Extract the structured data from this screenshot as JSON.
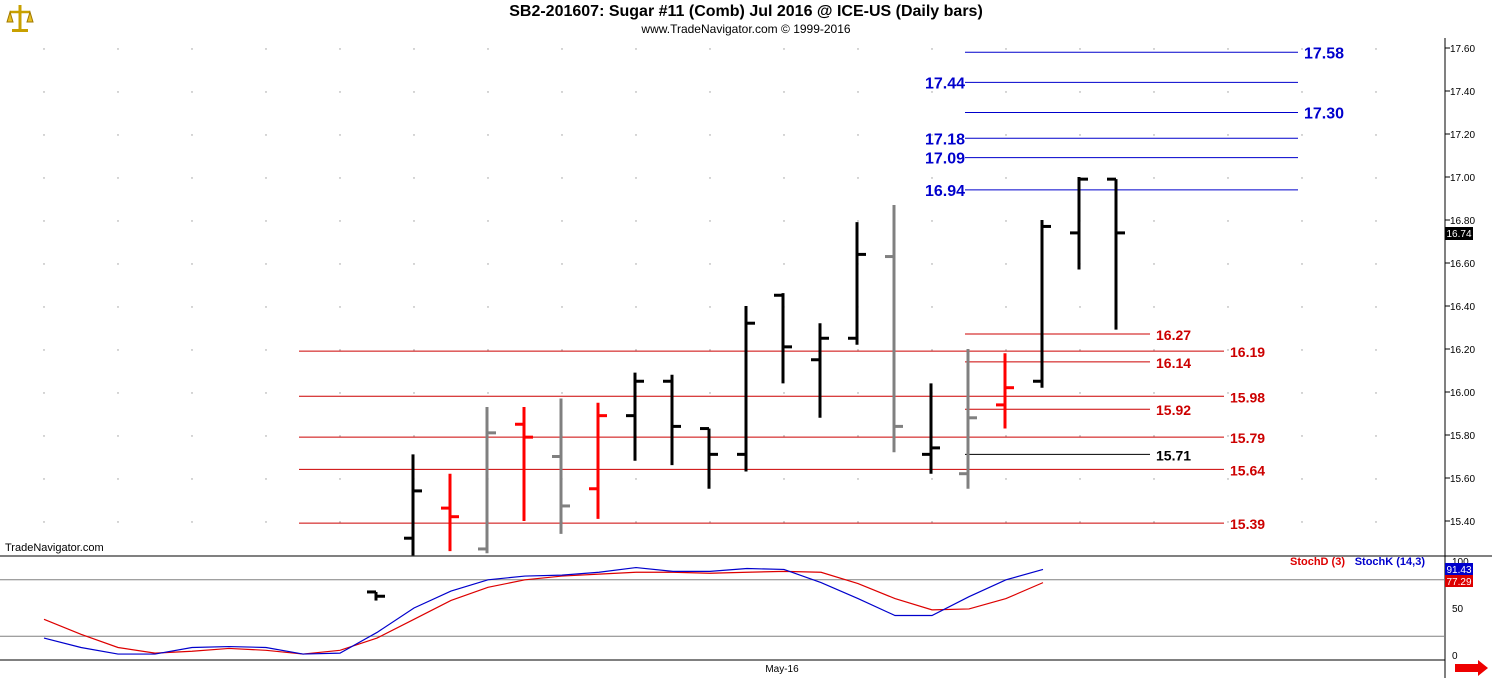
{
  "header": {
    "title": "SB2-201607:  Sugar #11 (Comb) Jul 2016 @ ICE-US  (Daily bars)",
    "subtitle": "www.TradeNavigator.com © 1999-2016"
  },
  "watermark": "TradeNavigator.com",
  "x_axis_label": "May-16",
  "colors": {
    "up": "#000000",
    "down_red": "#ff0000",
    "gray": "#808080",
    "blue_line": "#0000cc",
    "red_line": "#cc0000",
    "stochK": "#0000cc",
    "stochD": "#dd0000"
  },
  "chart_data": [
    {
      "type": "ohlc",
      "title": "SB2-201607:  Sugar #11 (Comb) Jul 2016 @ ICE-US  (Daily bars)",
      "ylim": [
        15.25,
        17.65
      ],
      "y_ticks": [
        "15.40",
        "15.60",
        "15.80",
        "16.00",
        "16.20",
        "16.40",
        "16.60",
        "16.80",
        "17.00",
        "17.20",
        "17.40",
        "17.60"
      ],
      "last_price": "16.74",
      "bars": [
        {
          "o": 15.07,
          "h": 15.07,
          "l": 15.03,
          "c": 15.05,
          "color": "black"
        },
        {
          "o": 15.32,
          "h": 15.71,
          "l": 15.24,
          "c": 15.54,
          "color": "black"
        },
        {
          "o": 15.46,
          "h": 15.62,
          "l": 15.26,
          "c": 15.42,
          "color": "red"
        },
        {
          "o": 15.27,
          "h": 15.93,
          "l": 15.25,
          "c": 15.81,
          "color": "gray"
        },
        {
          "o": 15.85,
          "h": 15.93,
          "l": 15.4,
          "c": 15.79,
          "color": "red"
        },
        {
          "o": 15.7,
          "h": 15.97,
          "l": 15.34,
          "c": 15.47,
          "color": "gray"
        },
        {
          "o": 15.55,
          "h": 15.95,
          "l": 15.41,
          "c": 15.89,
          "color": "red"
        },
        {
          "o": 15.89,
          "h": 16.09,
          "l": 15.68,
          "c": 16.05,
          "color": "black"
        },
        {
          "o": 16.05,
          "h": 16.08,
          "l": 15.66,
          "c": 15.84,
          "color": "black"
        },
        {
          "o": 15.83,
          "h": 15.83,
          "l": 15.55,
          "c": 15.71,
          "color": "black"
        },
        {
          "o": 15.71,
          "h": 16.4,
          "l": 15.63,
          "c": 16.32,
          "color": "black"
        },
        {
          "o": 16.45,
          "h": 16.46,
          "l": 16.04,
          "c": 16.21,
          "color": "black"
        },
        {
          "o": 16.15,
          "h": 16.32,
          "l": 15.88,
          "c": 16.25,
          "color": "black"
        },
        {
          "o": 16.25,
          "h": 16.79,
          "l": 16.22,
          "c": 16.64,
          "color": "black"
        },
        {
          "o": 16.63,
          "h": 16.87,
          "l": 15.72,
          "c": 15.84,
          "color": "gray"
        },
        {
          "o": 15.71,
          "h": 16.04,
          "l": 15.62,
          "c": 15.74,
          "color": "black"
        },
        {
          "o": 15.62,
          "h": 16.2,
          "l": 15.55,
          "c": 15.88,
          "color": "gray"
        },
        {
          "o": 15.94,
          "h": 16.18,
          "l": 15.83,
          "c": 16.02,
          "color": "red"
        },
        {
          "o": 16.05,
          "h": 16.8,
          "l": 16.02,
          "c": 16.77,
          "color": "black"
        },
        {
          "o": 16.74,
          "h": 17.0,
          "l": 16.57,
          "c": 16.99,
          "color": "black"
        },
        {
          "o": 16.99,
          "h": 16.99,
          "l": 16.29,
          "c": 16.74,
          "color": "black"
        }
      ],
      "levels": [
        {
          "value": 17.58,
          "label": "17.58",
          "color": "blue",
          "start_bar": 16,
          "end_bar": 25,
          "label_side": "right"
        },
        {
          "value": 17.44,
          "label": "17.44",
          "color": "blue",
          "start_bar": 16,
          "end_bar": 25,
          "label_side": "left"
        },
        {
          "value": 17.3,
          "label": "17.30",
          "color": "blue",
          "start_bar": 16,
          "end_bar": 25,
          "label_side": "right"
        },
        {
          "value": 17.18,
          "label": "17.18",
          "color": "blue",
          "start_bar": 16,
          "end_bar": 25,
          "label_side": "left"
        },
        {
          "value": 17.09,
          "label": "17.09",
          "color": "blue",
          "start_bar": 16,
          "end_bar": 25,
          "label_side": "left"
        },
        {
          "value": 16.94,
          "label": "16.94",
          "color": "blue",
          "start_bar": 16,
          "end_bar": 25,
          "label_side": "left"
        },
        {
          "value": 16.27,
          "label": "16.27",
          "color": "red",
          "start_bar": 16,
          "end_bar": 21,
          "label_side": "right"
        },
        {
          "value": 16.19,
          "label": "16.19",
          "color": "red",
          "start_bar": -2,
          "end_bar": 23,
          "label_side": "right"
        },
        {
          "value": 16.14,
          "label": "16.14",
          "color": "red",
          "start_bar": 16,
          "end_bar": 21,
          "label_side": "right"
        },
        {
          "value": 15.98,
          "label": "15.98",
          "color": "red",
          "start_bar": -2,
          "end_bar": 23,
          "label_side": "right"
        },
        {
          "value": 15.92,
          "label": "15.92",
          "color": "red",
          "start_bar": 16,
          "end_bar": 21,
          "label_side": "right"
        },
        {
          "value": 15.79,
          "label": "15.79",
          "color": "red",
          "start_bar": -2,
          "end_bar": 23,
          "label_side": "right"
        },
        {
          "value": 15.71,
          "label": "15.71",
          "color": "black",
          "start_bar": 16,
          "end_bar": 21,
          "label_side": "right"
        },
        {
          "value": 15.64,
          "label": "15.64",
          "color": "red",
          "start_bar": -2,
          "end_bar": 23,
          "label_side": "right"
        },
        {
          "value": 15.39,
          "label": "15.39",
          "color": "red",
          "start_bar": -2,
          "end_bar": 23,
          "label_side": "right"
        }
      ]
    },
    {
      "type": "line",
      "title": "Stochastic",
      "ylim": [
        0,
        100
      ],
      "y_ticks": [
        "0",
        "50",
        "100"
      ],
      "ref_lines": [
        20,
        80
      ],
      "series": [
        {
          "name": "StochD (3)",
          "color": "red",
          "last": "77.29",
          "values": [
            38,
            22,
            8,
            2,
            4,
            7,
            5,
            1,
            5,
            18,
            38,
            58,
            72,
            80,
            84,
            86,
            88,
            88,
            87,
            88,
            89,
            88,
            76,
            60,
            48,
            49,
            60,
            77
          ]
        },
        {
          "name": "StochK (14,3)",
          "color": "blue",
          "last": "91.43",
          "values": [
            18,
            8,
            1,
            1,
            8,
            9,
            8,
            1,
            2,
            24,
            50,
            68,
            80,
            84,
            85,
            88,
            93,
            89,
            89,
            92,
            91,
            77,
            60,
            42,
            42,
            62,
            80,
            91
          ]
        }
      ]
    }
  ]
}
